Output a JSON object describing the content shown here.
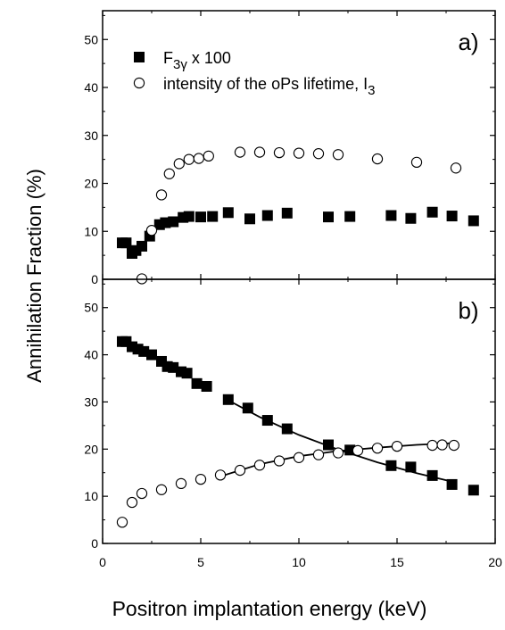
{
  "chart_data": {
    "type": "scatter",
    "xlabel": "Positron implantation energy (keV)",
    "ylabel": "Annihilation Fraction (%)",
    "xlim": [
      0,
      20
    ],
    "x_ticks": [
      0,
      5,
      10,
      15,
      20
    ],
    "grid": false,
    "legend_position": "top-left of panel a",
    "panels": [
      {
        "label": "a)",
        "ylim": [
          0,
          56
        ],
        "y_ticks": [
          0,
          10,
          20,
          30,
          40,
          50
        ],
        "legend": [
          {
            "marker": "filled-square",
            "text_main": "F",
            "text_sub": "3γ",
            "text_after": " x 100"
          },
          {
            "marker": "open-circle",
            "text_main": "intensity of the oPs lifetime, I",
            "text_sub": "3",
            "text_after": ""
          }
        ],
        "series": [
          {
            "name": "F3γ x 100",
            "marker": "filled-square",
            "points": [
              [
                1.0,
                7.6
              ],
              [
                1.2,
                7.6
              ],
              [
                1.5,
                5.4
              ],
              [
                1.7,
                6.0
              ],
              [
                2.0,
                6.9
              ],
              [
                2.4,
                9.0
              ],
              [
                2.9,
                11.4
              ],
              [
                3.2,
                11.8
              ],
              [
                3.6,
                12.0
              ],
              [
                4.1,
                12.9
              ],
              [
                4.4,
                13.1
              ],
              [
                5.0,
                13.0
              ],
              [
                5.6,
                13.1
              ],
              [
                6.4,
                13.9
              ],
              [
                7.5,
                12.6
              ],
              [
                8.4,
                13.3
              ],
              [
                9.4,
                13.8
              ],
              [
                11.5,
                13.0
              ],
              [
                12.6,
                13.1
              ],
              [
                14.7,
                13.3
              ],
              [
                15.7,
                12.7
              ],
              [
                16.8,
                14.0
              ],
              [
                17.8,
                13.2
              ],
              [
                18.9,
                12.2
              ]
            ]
          },
          {
            "name": "intensity of the oPs lifetime, I3",
            "marker": "open-circle",
            "points": [
              [
                2.0,
                0.1
              ],
              [
                2.5,
                10.2
              ],
              [
                3.0,
                17.6
              ],
              [
                3.4,
                22.0
              ],
              [
                3.9,
                24.1
              ],
              [
                4.4,
                25.0
              ],
              [
                4.9,
                25.2
              ],
              [
                5.4,
                25.7
              ],
              [
                7.0,
                26.5
              ],
              [
                8.0,
                26.5
              ],
              [
                9.0,
                26.4
              ],
              [
                10.0,
                26.3
              ],
              [
                11.0,
                26.2
              ],
              [
                12.0,
                26.0
              ],
              [
                14.0,
                25.1
              ],
              [
                16.0,
                24.4
              ],
              [
                18.0,
                23.2
              ]
            ]
          }
        ]
      },
      {
        "label": "b)",
        "ylim": [
          0,
          56
        ],
        "y_ticks": [
          0,
          10,
          20,
          30,
          40,
          50
        ],
        "series": [
          {
            "name": "F3γ x 100",
            "marker": "filled-square",
            "points": [
              [
                1.0,
                42.8
              ],
              [
                1.2,
                42.8
              ],
              [
                1.5,
                41.7
              ],
              [
                1.8,
                41.2
              ],
              [
                2.1,
                40.7
              ],
              [
                2.5,
                40.0
              ],
              [
                3.0,
                38.6
              ],
              [
                3.3,
                37.5
              ],
              [
                3.6,
                37.3
              ],
              [
                4.0,
                36.4
              ],
              [
                4.3,
                36.1
              ],
              [
                4.8,
                33.9
              ],
              [
                5.3,
                33.3
              ],
              [
                6.4,
                30.5
              ],
              [
                7.4,
                28.7
              ],
              [
                8.4,
                26.1
              ],
              [
                9.4,
                24.3
              ],
              [
                11.5,
                20.9
              ],
              [
                12.6,
                19.8
              ],
              [
                14.7,
                16.5
              ],
              [
                15.7,
                16.2
              ],
              [
                16.8,
                14.4
              ],
              [
                17.8,
                12.5
              ],
              [
                18.9,
                11.3
              ]
            ]
          },
          {
            "name": "intensity of the oPs lifetime, I3",
            "marker": "open-circle",
            "points": [
              [
                1.0,
                4.5
              ],
              [
                1.5,
                8.7
              ],
              [
                2.0,
                10.6
              ],
              [
                3.0,
                11.4
              ],
              [
                4.0,
                12.7
              ],
              [
                5.0,
                13.6
              ],
              [
                6.0,
                14.5
              ],
              [
                7.0,
                15.5
              ],
              [
                8.0,
                16.6
              ],
              [
                9.0,
                17.5
              ],
              [
                10.0,
                18.2
              ],
              [
                11.0,
                18.8
              ],
              [
                12.0,
                19.2
              ],
              [
                13.0,
                19.7
              ],
              [
                14.0,
                20.2
              ],
              [
                15.0,
                20.6
              ],
              [
                16.8,
                20.8
              ],
              [
                17.3,
                20.9
              ],
              [
                17.9,
                20.8
              ]
            ]
          }
        ],
        "fit_curves": [
          {
            "name": "F3γ fit",
            "points": [
              [
                6.2,
                30.8
              ],
              [
                8,
                26.8
              ],
              [
                10,
                23.0
              ],
              [
                12,
                19.9
              ],
              [
                14,
                17.2
              ],
              [
                16,
                14.9
              ],
              [
                18,
                12.9
              ]
            ]
          },
          {
            "name": "I3 fit",
            "points": [
              [
                6.0,
                14.2
              ],
              [
                8,
                16.8
              ],
              [
                10,
                18.5
              ],
              [
                12,
                19.6
              ],
              [
                14,
                20.3
              ],
              [
                16,
                20.9
              ],
              [
                18,
                21.3
              ]
            ]
          }
        ]
      }
    ]
  }
}
